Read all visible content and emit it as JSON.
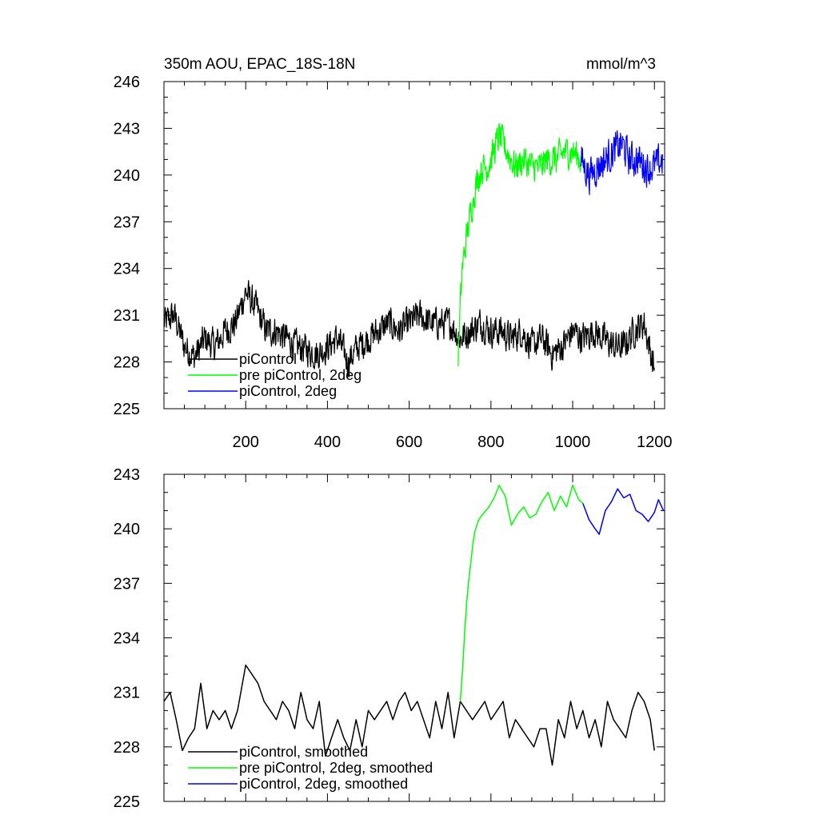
{
  "figure": {
    "title_left": "350m AOU, EPAC_18S-18N",
    "title_right": "mmol/m^3"
  },
  "chart_data": [
    {
      "type": "line",
      "panel": "top",
      "xlim": [
        0,
        1225
      ],
      "ylim": [
        225,
        246
      ],
      "xticks": [
        200,
        400,
        600,
        800,
        1000,
        1200
      ],
      "xtick_labels": [
        "200",
        "400",
        "600",
        "800",
        "1000",
        "1200"
      ],
      "yticks": [
        225,
        228,
        231,
        234,
        237,
        240,
        243,
        246
      ],
      "ytick_labels": [
        "225",
        "228",
        "231",
        "234",
        "237",
        "240",
        "243",
        "246"
      ],
      "legend_position": "bottom-left",
      "series": [
        {
          "name": "piControl",
          "color": "#000000",
          "x": [
            0,
            25,
            50,
            75,
            100,
            125,
            150,
            175,
            200,
            225,
            250,
            275,
            300,
            325,
            350,
            375,
            400,
            425,
            450,
            475,
            500,
            525,
            550,
            575,
            600,
            625,
            650,
            675,
            700,
            725,
            750,
            775,
            800,
            825,
            850,
            875,
            900,
            925,
            950,
            975,
            1000,
            1025,
            1050,
            1075,
            1100,
            1125,
            1150,
            1175,
            1200
          ],
          "y": [
            230.5,
            231.0,
            229.0,
            228.3,
            229.5,
            229.0,
            230.0,
            230.5,
            232.5,
            231.5,
            230.0,
            230.0,
            229.5,
            229.0,
            228.8,
            228.5,
            229.0,
            229.5,
            228.0,
            229.0,
            229.5,
            230.0,
            230.5,
            230.0,
            230.5,
            231.0,
            230.5,
            230.5,
            230.5,
            229.5,
            230.0,
            230.5,
            230.0,
            230.0,
            229.5,
            230.0,
            229.0,
            229.5,
            228.5,
            229.0,
            230.0,
            229.5,
            230.0,
            229.5,
            229.0,
            229.0,
            230.0,
            230.5,
            227.5
          ],
          "noise": 0.9
        },
        {
          "name": "pre piControl, 2deg",
          "color": "#00ff00",
          "x": [
            720,
            725,
            730,
            740,
            750,
            760,
            770,
            780,
            790,
            800,
            820,
            840,
            860,
            880,
            900,
            920,
            940,
            960,
            980,
            1000,
            1020
          ],
          "y": [
            228.5,
            231.5,
            234.0,
            236.0,
            237.5,
            239.0,
            240.0,
            240.5,
            240.5,
            241.0,
            242.5,
            241.5,
            240.5,
            241.0,
            240.5,
            240.5,
            241.0,
            241.0,
            241.5,
            241.5,
            241.0
          ],
          "noise": 0.9
        },
        {
          "name": "piControl, 2deg",
          "color": "#0000ff",
          "x": [
            1020,
            1040,
            1060,
            1080,
            1100,
            1120,
            1140,
            1160,
            1180,
            1200,
            1220
          ],
          "y": [
            241.0,
            240.0,
            240.5,
            241.0,
            241.5,
            242.0,
            241.0,
            241.0,
            240.5,
            240.5,
            241.0
          ],
          "noise": 1.0
        }
      ]
    },
    {
      "type": "line",
      "panel": "bottom",
      "xlim": [
        0,
        1225
      ],
      "ylim": [
        225,
        243
      ],
      "xticks": [
        200,
        400,
        600,
        800,
        1000,
        1200
      ],
      "yticks": [
        225,
        228,
        231,
        234,
        237,
        240,
        243
      ],
      "ytick_labels": [
        "225",
        "228",
        "231",
        "234",
        "237",
        "240",
        "243"
      ],
      "legend_position": "bottom-left",
      "series": [
        {
          "name": "piControl, smoothed",
          "color": "#000000",
          "x": [
            0,
            15,
            30,
            45,
            60,
            75,
            90,
            105,
            120,
            135,
            150,
            165,
            180,
            200,
            215,
            230,
            245,
            260,
            275,
            290,
            305,
            320,
            335,
            350,
            365,
            380,
            395,
            410,
            425,
            440,
            455,
            470,
            485,
            500,
            515,
            530,
            545,
            560,
            575,
            590,
            605,
            620,
            635,
            650,
            665,
            680,
            695,
            710,
            725,
            740,
            755,
            770,
            785,
            800,
            815,
            830,
            845,
            860,
            875,
            890,
            905,
            920,
            935,
            950,
            965,
            980,
            995,
            1010,
            1025,
            1040,
            1055,
            1070,
            1085,
            1100,
            1115,
            1130,
            1145,
            1160,
            1175,
            1190,
            1200
          ],
          "y": [
            230.5,
            231.0,
            229.5,
            227.8,
            228.5,
            229.0,
            231.5,
            229.0,
            230.0,
            229.5,
            230.0,
            229.0,
            230.0,
            232.5,
            232.0,
            231.5,
            230.5,
            230.0,
            229.5,
            230.5,
            230.0,
            229.0,
            231.0,
            229.5,
            229.0,
            230.5,
            227.5,
            228.5,
            229.5,
            228.5,
            227.8,
            229.5,
            228.0,
            230.0,
            229.5,
            230.0,
            230.5,
            229.5,
            230.5,
            231.0,
            230.0,
            230.5,
            229.5,
            228.5,
            230.5,
            229.0,
            231.0,
            228.5,
            230.5,
            230.0,
            229.5,
            230.0,
            230.5,
            229.5,
            230.0,
            230.5,
            228.5,
            229.5,
            229.0,
            228.5,
            228.0,
            229.0,
            229.0,
            227.0,
            229.5,
            228.5,
            230.5,
            229.0,
            230.0,
            228.5,
            229.5,
            228.0,
            230.5,
            229.5,
            229.0,
            228.5,
            230.0,
            231.0,
            230.5,
            229.5,
            227.8
          ]
        },
        {
          "name": "pre piControl, 2deg, smoothed",
          "color": "#00ff00",
          "x": [
            725,
            730,
            735,
            740,
            745,
            750,
            755,
            760,
            770,
            780,
            795,
            810,
            820,
            835,
            850,
            865,
            880,
            895,
            910,
            925,
            940,
            955,
            970,
            985,
            1000,
            1015,
            1025
          ],
          "y": [
            230.5,
            232.0,
            234.0,
            235.8,
            237.0,
            238.0,
            239.0,
            239.8,
            240.5,
            240.8,
            241.2,
            241.8,
            242.4,
            241.8,
            240.2,
            240.8,
            241.2,
            240.6,
            240.8,
            241.5,
            242.0,
            241.0,
            241.8,
            241.2,
            242.4,
            241.6,
            241.4
          ]
        },
        {
          "name": "piControl, 2deg, smoothed",
          "color": "#0000ff",
          "x": [
            1025,
            1040,
            1055,
            1065,
            1080,
            1095,
            1110,
            1125,
            1140,
            1155,
            1170,
            1185,
            1200,
            1210,
            1222
          ],
          "y": [
            241.4,
            240.5,
            240.0,
            239.7,
            241.0,
            241.5,
            242.2,
            241.7,
            241.9,
            241.0,
            240.8,
            240.4,
            240.9,
            241.6,
            241.0
          ]
        }
      ]
    }
  ]
}
